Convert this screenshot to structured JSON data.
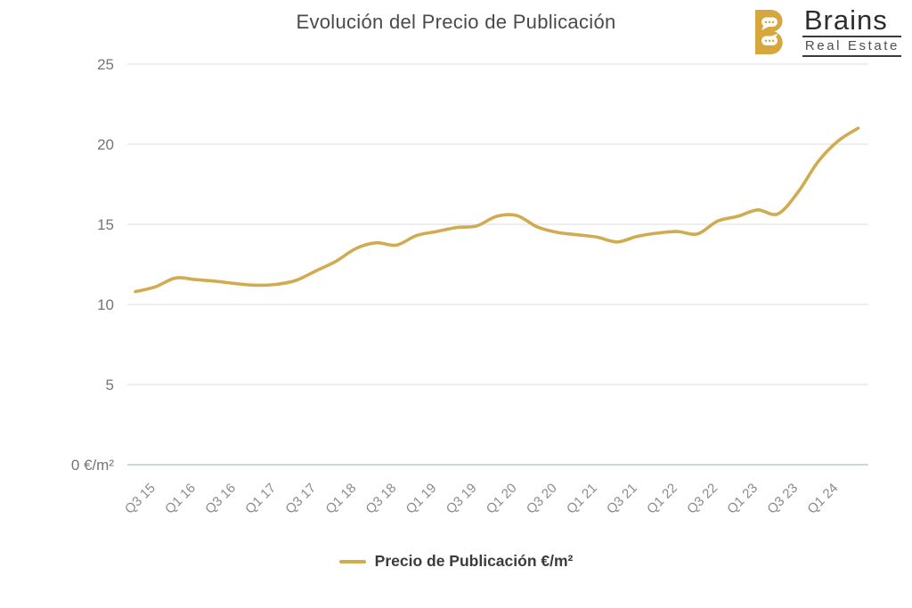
{
  "header": {
    "title": "Evolución del Precio de Publicación",
    "logo": {
      "brand": "Brains",
      "tagline": "Real Estate",
      "mark_letter": "B"
    }
  },
  "legend": {
    "label": "Precio de Publicación €/m²",
    "swatch_color": "#d1ab4f"
  },
  "colors": {
    "line": "#d1ab4f",
    "logo_gold": "#d5a73d",
    "gridline": "#e4e4e4",
    "zero_axis_line": "#ccd8dc",
    "title_text": "#4a4a4a",
    "y_label_text": "#757575",
    "x_label_text": "#8b8b8b",
    "legend_text": "#3b3b3b"
  },
  "chart_data": {
    "type": "line",
    "title": "Evolución del Precio de Publicación",
    "xlabel": "",
    "ylabel": "€/m²",
    "ylim": [
      0,
      25
    ],
    "y_ticks": [
      25,
      20,
      15,
      10,
      5,
      0
    ],
    "y_tick_labels": [
      "25",
      "20",
      "15",
      "10",
      "5",
      "0 €/m²"
    ],
    "grid": "horizontal-only",
    "legend_position": "bottom",
    "x": [
      "Q1 15",
      "Q2 15",
      "Q3 15",
      "Q4 15",
      "Q1 16",
      "Q2 16",
      "Q3 16",
      "Q4 16",
      "Q1 17",
      "Q2 17",
      "Q3 17",
      "Q4 17",
      "Q1 18",
      "Q2 18",
      "Q3 18",
      "Q4 18",
      "Q1 19",
      "Q2 19",
      "Q3 19",
      "Q4 19",
      "Q1 20",
      "Q2 20",
      "Q3 20",
      "Q4 20",
      "Q1 21",
      "Q2 21",
      "Q3 21",
      "Q4 21",
      "Q1 22",
      "Q2 22",
      "Q3 22",
      "Q4 22",
      "Q1 23",
      "Q2 23",
      "Q3 23",
      "Q4 23",
      "Q1 24"
    ],
    "x_tick_labels": [
      "Q3 15",
      "Q1 16",
      "Q3 16",
      "Q1 17",
      "Q3 17",
      "Q1 18",
      "Q3 18",
      "Q1 19",
      "Q3 19",
      "Q1 20",
      "Q3 20",
      "Q1 21",
      "Q3 21",
      "Q1 22",
      "Q3 22",
      "Q1 23",
      "Q3 23",
      "Q1 24"
    ],
    "series": [
      {
        "name": "Precio de Publicación €/m²",
        "color": "#d1ab4f",
        "values": [
          10.8,
          11.1,
          11.65,
          11.55,
          11.45,
          11.3,
          11.2,
          11.25,
          11.5,
          12.1,
          12.7,
          13.5,
          13.85,
          13.7,
          14.3,
          14.55,
          14.8,
          14.9,
          15.5,
          15.55,
          14.85,
          14.5,
          14.35,
          14.2,
          13.9,
          14.25,
          14.45,
          14.55,
          14.4,
          15.2,
          15.5,
          15.9,
          15.65,
          17.0,
          18.9,
          20.2,
          21.0
        ]
      }
    ]
  }
}
